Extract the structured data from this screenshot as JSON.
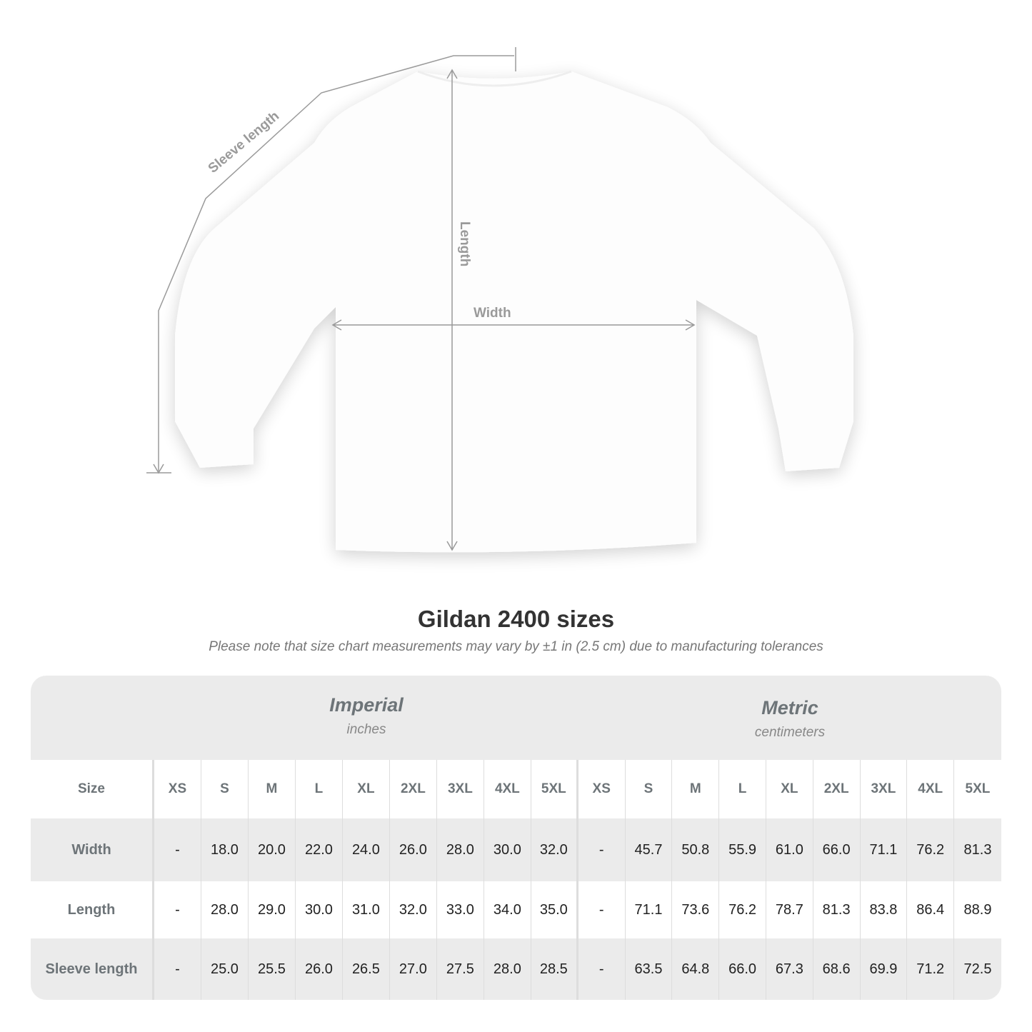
{
  "diagram": {
    "labels": {
      "sleeve": "Sleeve length",
      "length": "Length",
      "width": "Width"
    },
    "line_color": "#9a9a9a"
  },
  "title": "Gildan 2400 sizes",
  "note": "Please note that size chart measurements may vary by ±1 in (2.5 cm) due to manufacturing tolerances",
  "table": {
    "imperial": {
      "title": "Imperial",
      "unit": "inches"
    },
    "metric": {
      "title": "Metric",
      "unit": "centimeters"
    },
    "size_label": "Size",
    "sizes": [
      "XS",
      "S",
      "M",
      "L",
      "XL",
      "2XL",
      "3XL",
      "4XL",
      "5XL"
    ],
    "rows": [
      {
        "label": "Width",
        "imperial": [
          "-",
          "18.0",
          "20.0",
          "22.0",
          "24.0",
          "26.0",
          "28.0",
          "30.0",
          "32.0"
        ],
        "metric": [
          "-",
          "45.7",
          "50.8",
          "55.9",
          "61.0",
          "66.0",
          "71.1",
          "76.2",
          "81.3"
        ]
      },
      {
        "label": "Length",
        "imperial": [
          "-",
          "28.0",
          "29.0",
          "30.0",
          "31.0",
          "32.0",
          "33.0",
          "34.0",
          "35.0"
        ],
        "metric": [
          "-",
          "71.1",
          "73.6",
          "76.2",
          "78.7",
          "81.3",
          "83.8",
          "86.4",
          "88.9"
        ]
      },
      {
        "label": "Sleeve length",
        "imperial": [
          "-",
          "25.0",
          "25.5",
          "26.0",
          "26.5",
          "27.0",
          "27.5",
          "28.0",
          "28.5"
        ],
        "metric": [
          "-",
          "63.5",
          "64.8",
          "66.0",
          "67.3",
          "68.6",
          "69.9",
          "71.2",
          "72.5"
        ]
      }
    ],
    "colors": {
      "header_bg": "#ebebeb",
      "label_text": "#6d7478"
    }
  }
}
